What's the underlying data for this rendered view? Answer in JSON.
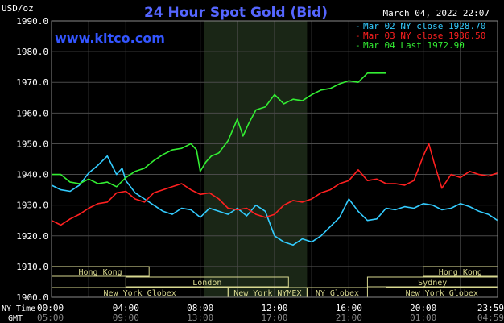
{
  "chart_data": {
    "type": "line",
    "title": "24 Hour Spot Gold (Bid)",
    "ylabel": "USD/oz",
    "timestamp": "March 04, 2022 22:07",
    "website": "www.kitco.com",
    "ylim": [
      1900,
      1990
    ],
    "yticks": [
      "1990.0",
      "1980.0",
      "1970.0",
      "1960.0",
      "1950.0",
      "1940.0",
      "1930.0",
      "1920.0",
      "1910.0",
      "1900.0"
    ],
    "x_hours_range": [
      0,
      24
    ],
    "x_axis": {
      "ny_label": "NY Time",
      "gmt_label": "GMT",
      "ny_ticks": [
        "00:00",
        "04:00",
        "08:00",
        "12:00",
        "16:00",
        "20:00",
        "23:59"
      ],
      "gmt_ticks": [
        "05:00",
        "09:00",
        "13:00",
        "17:00",
        "21:00",
        "01:00",
        "04:59"
      ]
    },
    "series": [
      {
        "name": "Mar 02 NY close 1928.70",
        "color": "#33ccff",
        "x": [
          0,
          0.5,
          1,
          1.5,
          2,
          2.5,
          3,
          3.5,
          3.8,
          4,
          4.5,
          5,
          5.5,
          6,
          6.5,
          7,
          7.5,
          8,
          8.5,
          9,
          9.5,
          10,
          10.5,
          11,
          11.5,
          12,
          12.5,
          13,
          13.5,
          14,
          14.5,
          15,
          15.5,
          16,
          16.5,
          17,
          17.5,
          18,
          18.5,
          19,
          19.5,
          20,
          20.5,
          21,
          21.5,
          22,
          22.5,
          23,
          23.5,
          24
        ],
        "values": [
          1936.5,
          1935.0,
          1934.5,
          1936.5,
          1940.5,
          1943.0,
          1946.0,
          1940.0,
          1942.0,
          1938.0,
          1934.0,
          1932.0,
          1930.0,
          1928.0,
          1927.0,
          1929.0,
          1928.5,
          1926.0,
          1929.0,
          1928.0,
          1927.0,
          1929.0,
          1926.5,
          1930.0,
          1928.0,
          1920.0,
          1918.0,
          1917.0,
          1919.0,
          1918.0,
          1920.0,
          1923.0,
          1926.0,
          1932.0,
          1928.0,
          1925.0,
          1925.5,
          1929.0,
          1928.5,
          1929.5,
          1929.0,
          1930.5,
          1930.0,
          1928.5,
          1929.0,
          1930.5,
          1929.5,
          1928.0,
          1927.0,
          1925.0
        ]
      },
      {
        "name": "Mar 03 NY close 1936.50",
        "color": "#ff2020",
        "x": [
          0,
          0.5,
          1,
          1.5,
          2,
          2.5,
          3,
          3.5,
          4,
          4.5,
          5,
          5.5,
          6,
          6.5,
          7,
          7.5,
          8,
          8.5,
          9,
          9.5,
          10,
          10.5,
          11,
          11.5,
          12,
          12.5,
          13,
          13.5,
          14,
          14.5,
          15,
          15.5,
          16,
          16.5,
          17,
          17.5,
          18,
          18.5,
          19,
          19.5,
          20,
          20.3,
          20.6,
          21,
          21.5,
          22,
          22.5,
          23,
          23.5,
          24
        ],
        "values": [
          1925.0,
          1923.5,
          1925.5,
          1927.0,
          1929.0,
          1930.5,
          1931.0,
          1934.0,
          1934.5,
          1932.0,
          1931.0,
          1934.0,
          1935.0,
          1936.0,
          1937.0,
          1935.0,
          1933.5,
          1934.0,
          1932.0,
          1929.0,
          1928.5,
          1929.0,
          1927.0,
          1926.0,
          1927.0,
          1930.0,
          1931.5,
          1931.0,
          1932.0,
          1934.0,
          1935.0,
          1937.0,
          1938.0,
          1941.5,
          1938.0,
          1938.5,
          1937.0,
          1937.0,
          1936.5,
          1938.0,
          1946.0,
          1950.0,
          1943.5,
          1935.5,
          1940.0,
          1939.0,
          1941.0,
          1940.0,
          1939.5,
          1940.5
        ]
      },
      {
        "name": "Mar 04 Last 1972.90",
        "color": "#33ee33",
        "x": [
          0,
          0.5,
          1,
          1.5,
          2,
          2.5,
          3,
          3.5,
          4,
          4.5,
          5,
          5.5,
          6,
          6.5,
          7,
          7.5,
          7.8,
          8,
          8.3,
          8.6,
          9,
          9.5,
          10,
          10.3,
          10.6,
          11,
          11.5,
          12,
          12.5,
          13,
          13.5,
          14,
          14.5,
          15,
          15.5,
          16,
          16.5,
          17,
          17.5,
          18
        ],
        "values": [
          1940.0,
          1940.0,
          1937.5,
          1937.0,
          1938.5,
          1937.0,
          1937.5,
          1936.0,
          1939.0,
          1941.0,
          1942.0,
          1944.5,
          1946.5,
          1948.0,
          1948.5,
          1950.0,
          1948.0,
          1941.0,
          1944.0,
          1946.0,
          1947.0,
          1951.0,
          1958.0,
          1952.5,
          1956.5,
          1961.0,
          1962.0,
          1966.0,
          1963.0,
          1964.5,
          1964.0,
          1966.0,
          1967.5,
          1968.0,
          1969.5,
          1970.5,
          1970.0,
          1973.0,
          1973.0,
          1973.0
        ]
      }
    ],
    "sessions": [
      {
        "name": "Hong Kong",
        "row": 1,
        "start": 0,
        "end": 5.25
      },
      {
        "name": "Hong Kong",
        "row": 1,
        "start": 20.0,
        "end": 24
      },
      {
        "name": "London",
        "row": 2,
        "start": 4.0,
        "end": 12.75
      },
      {
        "name": "Sydney",
        "row": 2,
        "start": 17.0,
        "end": 24
      },
      {
        "name": "New York Globex",
        "row": 3,
        "start": 0,
        "end": 9.5
      },
      {
        "name": "New York NYMEX",
        "row": 3,
        "start": 9.5,
        "end": 13.75
      },
      {
        "name": "NY Globex",
        "row": 3,
        "start": 13.75,
        "end": 17.0
      },
      {
        "name": "New York Globex",
        "row": 3,
        "start": 18.0,
        "end": 24
      }
    ],
    "highlight_hours": [
      8.2,
      13.75
    ],
    "grid": true,
    "legend_position": "top-right"
  }
}
